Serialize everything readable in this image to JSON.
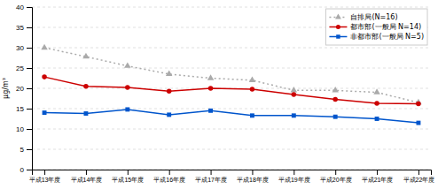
{
  "chart_data": {
    "type": "line",
    "ylabel": "μg/m³",
    "categories": [
      "平成13年度",
      "平成14年度",
      "平成15年度",
      "平成16年度",
      "平成17年度",
      "平成18年度",
      "平成19年度",
      "平成20年度",
      "平成21年度",
      "平成22年度"
    ],
    "series": [
      {
        "name": "自排局(N=16)",
        "color": "#aaaaaa",
        "marker": "triangle",
        "line_style": "dotted",
        "values": [
          30.0,
          27.8,
          25.5,
          23.5,
          22.5,
          22.0,
          19.5,
          19.5,
          19.0,
          16.5
        ]
      },
      {
        "name": "都市部(一般局 N=14)",
        "color": "#cc0000",
        "marker": "circle",
        "line_style": "solid",
        "values": [
          22.8,
          20.5,
          20.2,
          19.3,
          20.0,
          19.8,
          18.5,
          17.3,
          16.3,
          16.2
        ]
      },
      {
        "name": "非都市部(一般局 N=5)",
        "color": "#0055cc",
        "marker": "square",
        "line_style": "solid",
        "values": [
          14.0,
          13.8,
          14.8,
          13.5,
          14.5,
          13.3,
          13.3,
          13.0,
          12.5,
          11.5
        ]
      }
    ],
    "ylim": [
      0,
      40
    ],
    "yticks": [
      0,
      5,
      10,
      15,
      20,
      25,
      30,
      35,
      40
    ],
    "grid": true,
    "legend": "upper-right"
  }
}
